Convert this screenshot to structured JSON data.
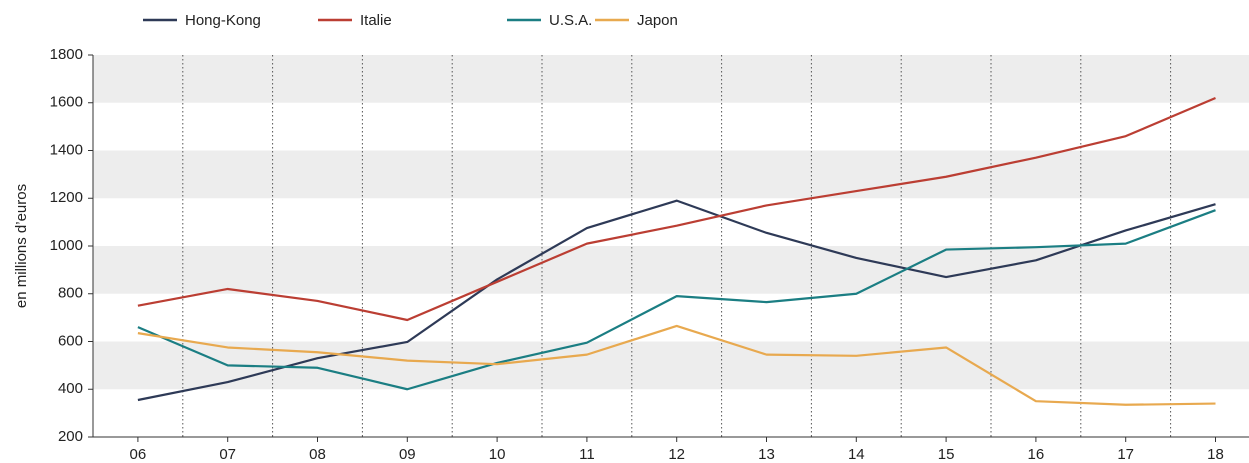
{
  "chart_data": {
    "type": "line",
    "y_label": "en millions d’euros",
    "categories": [
      "06",
      "07",
      "08",
      "09",
      "10",
      "11",
      "12",
      "13",
      "14",
      "15",
      "16",
      "17",
      "18"
    ],
    "series": [
      {
        "name": "Hong-Kong",
        "color": "#2e3a57",
        "values": [
          355,
          430,
          530,
          598,
          860,
          1075,
          1190,
          1055,
          950,
          870,
          940,
          1065,
          1175
        ]
      },
      {
        "name": "Italie",
        "color": "#bb3e33",
        "values": [
          750,
          820,
          770,
          690,
          850,
          1010,
          1085,
          1170,
          1230,
          1290,
          1370,
          1460,
          1620
        ]
      },
      {
        "name": "U.S.A.",
        "color": "#1b7e83",
        "values": [
          660,
          500,
          490,
          400,
          510,
          595,
          790,
          765,
          800,
          985,
          995,
          1010,
          1150
        ]
      },
      {
        "name": "Japon",
        "color": "#e8a94f",
        "values": [
          635,
          575,
          555,
          520,
          505,
          545,
          665,
          545,
          540,
          575,
          350,
          335,
          340
        ]
      }
    ],
    "ylim": [
      200,
      1800
    ],
    "yticks": [
      200,
      400,
      600,
      800,
      1000,
      1200,
      1400,
      1600,
      1800
    ],
    "grid": "bands",
    "legend": "top"
  }
}
